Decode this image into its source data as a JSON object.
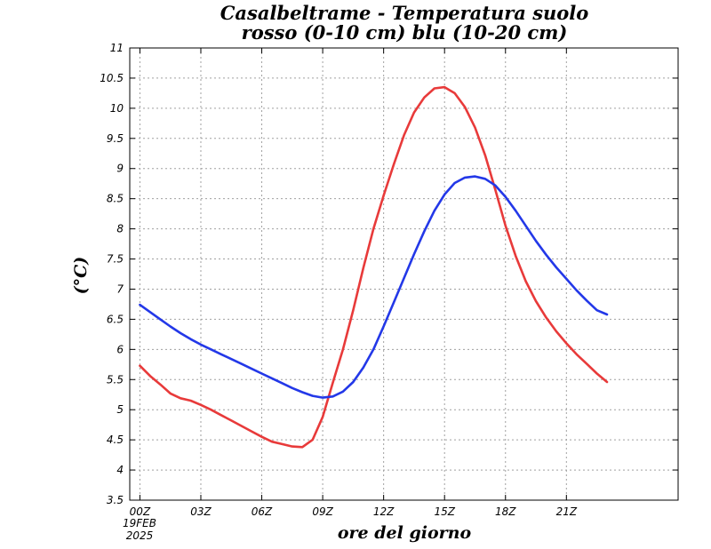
{
  "chart_data": {
    "type": "line",
    "title": "Casalbeltrame - Temperatura suolo",
    "subtitle": "rosso (0-10 cm) blu (10-20 cm)",
    "xlabel": "ore del giorno",
    "ylabel": "(°C)",
    "date_label_day": "19FEB",
    "date_label_year": "2025",
    "xlim": [
      -0.5,
      26.5
    ],
    "ylim": [
      3.5,
      11
    ],
    "grid": true,
    "x_ticks": [
      {
        "x": 0,
        "label": "00Z"
      },
      {
        "x": 3,
        "label": "03Z"
      },
      {
        "x": 6,
        "label": "06Z"
      },
      {
        "x": 9,
        "label": "09Z"
      },
      {
        "x": 12,
        "label": "12Z"
      },
      {
        "x": 15,
        "label": "15Z"
      },
      {
        "x": 18,
        "label": "18Z"
      },
      {
        "x": 21,
        "label": "21Z"
      }
    ],
    "y_ticks": [
      {
        "y": 3.5,
        "label": "3.5"
      },
      {
        "y": 4,
        "label": "4"
      },
      {
        "y": 4.5,
        "label": "4.5"
      },
      {
        "y": 5,
        "label": "5"
      },
      {
        "y": 5.5,
        "label": "5.5"
      },
      {
        "y": 6,
        "label": "6"
      },
      {
        "y": 6.5,
        "label": "6.5"
      },
      {
        "y": 7,
        "label": "7"
      },
      {
        "y": 7.5,
        "label": "7.5"
      },
      {
        "y": 8,
        "label": "8"
      },
      {
        "y": 8.5,
        "label": "8.5"
      },
      {
        "y": 9,
        "label": "9"
      },
      {
        "y": 9.5,
        "label": "9.5"
      },
      {
        "y": 10,
        "label": "10"
      },
      {
        "y": 10.5,
        "label": "10.5"
      },
      {
        "y": 11,
        "label": "11"
      }
    ],
    "series": [
      {
        "color": "#e83a3a",
        "x": [
          0,
          0.5,
          1,
          1.5,
          2,
          2.5,
          3,
          3.5,
          4,
          4.5,
          5,
          5.5,
          6,
          6.5,
          7,
          7.5,
          8,
          8.5,
          9,
          9.5,
          10,
          10.5,
          11,
          11.5,
          12,
          12.5,
          13,
          13.5,
          14,
          14.5,
          15,
          15.5,
          16,
          16.5,
          17,
          17.5,
          18,
          18.5,
          19,
          19.5,
          20,
          20.5,
          21,
          21.5,
          22,
          22.5,
          23
        ],
        "values": [
          5.73,
          5.56,
          5.42,
          5.27,
          5.19,
          5.15,
          5.08,
          5.0,
          4.91,
          4.82,
          4.73,
          4.64,
          4.55,
          4.47,
          4.43,
          4.39,
          4.38,
          4.5,
          4.88,
          5.45,
          6.0,
          6.65,
          7.35,
          8.0,
          8.55,
          9.07,
          9.55,
          9.93,
          10.18,
          10.33,
          10.35,
          10.25,
          10.02,
          9.68,
          9.22,
          8.65,
          8.05,
          7.55,
          7.13,
          6.8,
          6.53,
          6.3,
          6.1,
          5.92,
          5.76,
          5.6,
          5.46
        ]
      },
      {
        "color": "#2338e8",
        "x": [
          0,
          0.5,
          1,
          1.5,
          2,
          2.5,
          3,
          3.5,
          4,
          4.5,
          5,
          5.5,
          6,
          6.5,
          7,
          7.5,
          8,
          8.5,
          9,
          9.5,
          10,
          10.5,
          11,
          11.5,
          12,
          12.5,
          13,
          13.5,
          14,
          14.5,
          15,
          15.5,
          16,
          16.5,
          17,
          17.5,
          18,
          18.5,
          19,
          19.5,
          20,
          20.5,
          21,
          21.5,
          22,
          22.5,
          23
        ],
        "values": [
          6.74,
          6.62,
          6.5,
          6.38,
          6.27,
          6.17,
          6.08,
          6.0,
          5.92,
          5.84,
          5.76,
          5.68,
          5.6,
          5.52,
          5.44,
          5.36,
          5.29,
          5.23,
          5.2,
          5.22,
          5.3,
          5.46,
          5.7,
          6.0,
          6.38,
          6.78,
          7.18,
          7.58,
          7.96,
          8.3,
          8.57,
          8.76,
          8.85,
          8.87,
          8.83,
          8.72,
          8.53,
          8.3,
          8.05,
          7.8,
          7.57,
          7.36,
          7.17,
          6.98,
          6.81,
          6.65,
          6.58
        ]
      }
    ]
  }
}
